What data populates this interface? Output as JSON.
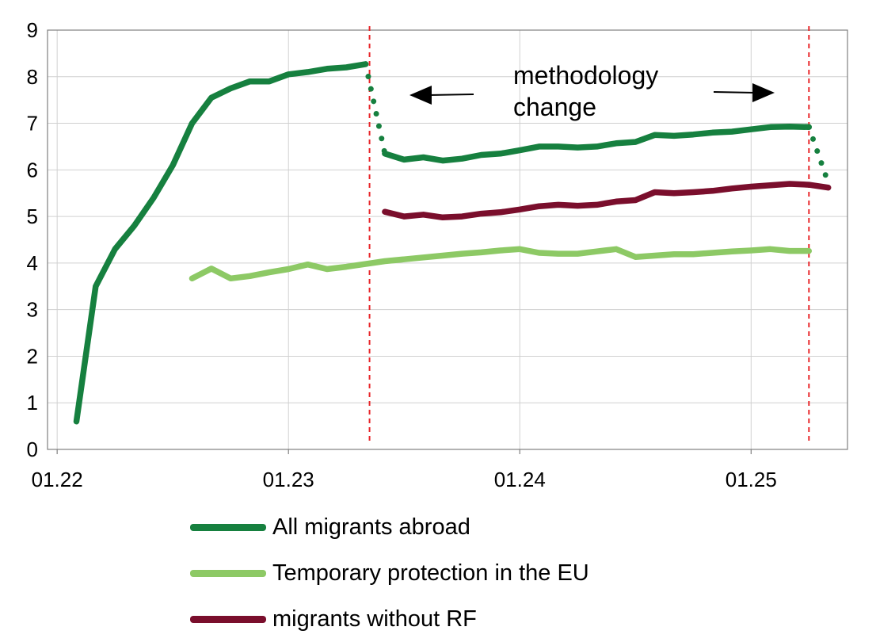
{
  "chart_data": {
    "type": "line",
    "x_ticks": [
      "01.22",
      "01.23",
      "01.24",
      "01.25"
    ],
    "ylim": [
      0,
      9
    ],
    "y_ticks": [
      "0",
      "1",
      "2",
      "3",
      "4",
      "5",
      "6",
      "7",
      "8",
      "9"
    ],
    "grid": true,
    "legend_position": "bottom",
    "annotation": {
      "lines": [
        "methodology",
        "change"
      ]
    },
    "vertical_markers": [
      "2023-05",
      "2025-04"
    ],
    "series": [
      {
        "name": "All migrants abroad",
        "color": "#16803f",
        "segments": [
          {
            "style": "solid",
            "points": [
              [
                "2022-02",
                0.6
              ],
              [
                "2022-03",
                3.5
              ],
              [
                "2022-04",
                4.3
              ],
              [
                "2022-05",
                4.8
              ],
              [
                "2022-06",
                5.4
              ],
              [
                "2022-07",
                6.1
              ],
              [
                "2022-08",
                7.0
              ],
              [
                "2022-09",
                7.55
              ],
              [
                "2022-10",
                7.75
              ],
              [
                "2022-11",
                7.9
              ],
              [
                "2022-12",
                7.9
              ],
              [
                "2023-01",
                8.05
              ],
              [
                "2023-02",
                8.1
              ],
              [
                "2023-03",
                8.17
              ],
              [
                "2023-04",
                8.2
              ],
              [
                "2023-05",
                8.27
              ]
            ]
          },
          {
            "style": "dotted",
            "points": [
              [
                "2023-05",
                8.27
              ],
              [
                "2023-06",
                6.35
              ]
            ]
          },
          {
            "style": "solid",
            "points": [
              [
                "2023-06",
                6.35
              ],
              [
                "2023-07",
                6.22
              ],
              [
                "2023-08",
                6.27
              ],
              [
                "2023-09",
                6.2
              ],
              [
                "2023-10",
                6.24
              ],
              [
                "2023-11",
                6.32
              ],
              [
                "2023-12",
                6.35
              ],
              [
                "2024-01",
                6.42
              ],
              [
                "2024-02",
                6.5
              ],
              [
                "2024-03",
                6.5
              ],
              [
                "2024-04",
                6.48
              ],
              [
                "2024-05",
                6.5
              ],
              [
                "2024-06",
                6.57
              ],
              [
                "2024-07",
                6.6
              ],
              [
                "2024-08",
                6.75
              ],
              [
                "2024-09",
                6.73
              ],
              [
                "2024-10",
                6.76
              ],
              [
                "2024-11",
                6.8
              ],
              [
                "2024-12",
                6.82
              ],
              [
                "2025-01",
                6.87
              ],
              [
                "2025-02",
                6.92
              ],
              [
                "2025-03",
                6.93
              ],
              [
                "2025-04",
                6.92
              ]
            ]
          },
          {
            "style": "dotted",
            "points": [
              [
                "2025-04",
                6.92
              ],
              [
                "2025-05",
                5.72
              ]
            ]
          }
        ]
      },
      {
        "name": "Temporary protection in the EU",
        "color": "#8dc965",
        "segments": [
          {
            "style": "solid",
            "points": [
              [
                "2022-08",
                3.67
              ],
              [
                "2022-09",
                3.88
              ],
              [
                "2022-10",
                3.67
              ],
              [
                "2022-11",
                3.72
              ],
              [
                "2022-12",
                3.8
              ],
              [
                "2023-01",
                3.87
              ],
              [
                "2023-02",
                3.97
              ],
              [
                "2023-03",
                3.87
              ],
              [
                "2023-04",
                3.92
              ],
              [
                "2023-05",
                3.98
              ],
              [
                "2023-06",
                4.04
              ],
              [
                "2023-07",
                4.08
              ],
              [
                "2023-08",
                4.12
              ],
              [
                "2023-09",
                4.16
              ],
              [
                "2023-10",
                4.2
              ],
              [
                "2023-11",
                4.23
              ],
              [
                "2023-12",
                4.27
              ],
              [
                "2024-01",
                4.3
              ],
              [
                "2024-02",
                4.22
              ],
              [
                "2024-03",
                4.2
              ],
              [
                "2024-04",
                4.2
              ],
              [
                "2024-05",
                4.25
              ],
              [
                "2024-06",
                4.3
              ],
              [
                "2024-07",
                4.13
              ],
              [
                "2024-08",
                4.16
              ],
              [
                "2024-09",
                4.19
              ],
              [
                "2024-10",
                4.19
              ],
              [
                "2024-11",
                4.22
              ],
              [
                "2024-12",
                4.25
              ],
              [
                "2025-01",
                4.27
              ],
              [
                "2025-02",
                4.3
              ],
              [
                "2025-03",
                4.26
              ],
              [
                "2025-04",
                4.26
              ]
            ]
          }
        ]
      },
      {
        "name": "migrants without RF",
        "color": "#7a0e2c",
        "segments": [
          {
            "style": "solid",
            "points": [
              [
                "2023-06",
                5.1
              ],
              [
                "2023-07",
                5.0
              ],
              [
                "2023-08",
                5.04
              ],
              [
                "2023-09",
                4.98
              ],
              [
                "2023-10",
                5.0
              ],
              [
                "2023-11",
                5.06
              ],
              [
                "2023-12",
                5.09
              ],
              [
                "2024-01",
                5.15
              ],
              [
                "2024-02",
                5.22
              ],
              [
                "2024-03",
                5.25
              ],
              [
                "2024-04",
                5.23
              ],
              [
                "2024-05",
                5.25
              ],
              [
                "2024-06",
                5.32
              ],
              [
                "2024-07",
                5.35
              ],
              [
                "2024-08",
                5.52
              ],
              [
                "2024-09",
                5.5
              ],
              [
                "2024-10",
                5.52
              ],
              [
                "2024-11",
                5.55
              ],
              [
                "2024-12",
                5.6
              ],
              [
                "2025-01",
                5.64
              ],
              [
                "2025-02",
                5.67
              ],
              [
                "2025-03",
                5.7
              ],
              [
                "2025-04",
                5.68
              ],
              [
                "2025-05",
                5.62
              ]
            ]
          }
        ]
      }
    ]
  }
}
